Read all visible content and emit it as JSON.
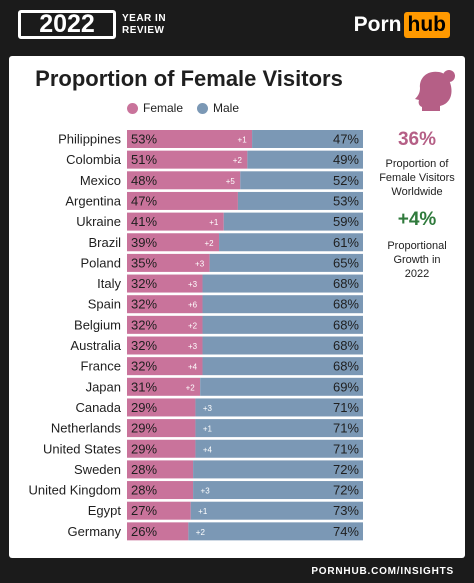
{
  "header": {
    "year": "2022",
    "sub_line1": "YEAR IN",
    "sub_line2": "REVIEW",
    "brand_part1": "Porn",
    "brand_part2": "hub"
  },
  "colors": {
    "female": "#c9739b",
    "male": "#7b98b5",
    "accent_pink": "#b55f86",
    "accent_green": "#2f7a3c",
    "brand_orange": "#ff9900"
  },
  "chart_data": {
    "type": "bar",
    "stacked": true,
    "orientation": "horizontal",
    "title": "Proportion of Female Visitors",
    "legend": [
      "Female",
      "Male"
    ],
    "categories": [
      "Philippines",
      "Colombia",
      "Mexico",
      "Argentina",
      "Ukraine",
      "Brazil",
      "Poland",
      "Italy",
      "Spain",
      "Belgium",
      "Australia",
      "France",
      "Japan",
      "Canada",
      "Netherlands",
      "United States",
      "Sweden",
      "United Kingdom",
      "Egypt",
      "Germany"
    ],
    "series": [
      {
        "name": "Female",
        "values": [
          53,
          51,
          48,
          47,
          41,
          39,
          35,
          32,
          32,
          32,
          32,
          32,
          31,
          29,
          29,
          29,
          28,
          28,
          27,
          26
        ],
        "labels": [
          "53%",
          "51%",
          "48%",
          "47%",
          "41%",
          "39%",
          "35%",
          "32%",
          "32%",
          "32%",
          "32%",
          "32%",
          "31%",
          "29%",
          "29%",
          "29%",
          "28%",
          "28%",
          "27%",
          "26%"
        ]
      },
      {
        "name": "Male",
        "values": [
          47,
          49,
          52,
          53,
          59,
          61,
          65,
          68,
          68,
          68,
          68,
          68,
          69,
          71,
          71,
          71,
          72,
          72,
          73,
          74
        ],
        "labels": [
          "47%",
          "49%",
          "52%",
          "53%",
          "59%",
          "61%",
          "65%",
          "68%",
          "68%",
          "68%",
          "68%",
          "68%",
          "69%",
          "71%",
          "71%",
          "71%",
          "72%",
          "72%",
          "73%",
          "74%"
        ]
      }
    ],
    "change_labels": [
      "+1",
      "+2",
      "+5",
      "",
      "+1",
      "+2",
      "+3",
      "+3",
      "+6",
      "+2",
      "+3",
      "+4",
      "+2",
      "+3",
      "+1",
      "+4",
      "",
      "+3",
      "+1",
      "+2"
    ],
    "xlim": [
      0,
      100
    ]
  },
  "sidebar": {
    "stat1_value": "36%",
    "stat1_line1": "Proportion of",
    "stat1_line2": "Female Visitors",
    "stat1_line3": "Worldwide",
    "stat2_value": "+4%",
    "stat2_line1": "Proportional",
    "stat2_line2": "Growth in",
    "stat2_line3": "2022",
    "icon": "female-profile-icon"
  },
  "footer": {
    "text": "PORNHUB.COM/INSIGHTS"
  }
}
